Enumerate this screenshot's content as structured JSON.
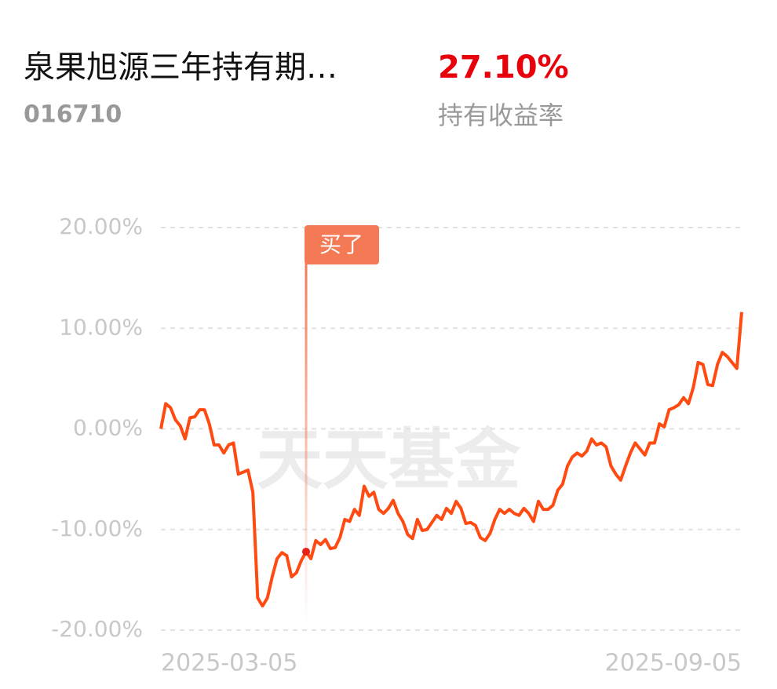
{
  "header": {
    "fund_name": "泉果旭源三年持有期…",
    "fund_code": "016710",
    "return_value": "27.10%",
    "return_label": "持有收益率"
  },
  "chart_data": {
    "type": "line",
    "watermark": "天天基金",
    "categories": [
      "2025-03-05",
      null,
      null,
      null,
      null,
      null,
      null,
      null,
      null,
      null,
      null,
      null,
      null,
      null,
      null,
      null,
      null,
      null,
      null,
      null,
      null,
      null,
      null,
      null,
      null,
      null,
      null,
      null,
      null,
      null,
      null,
      null,
      null,
      null,
      null,
      null,
      null,
      null,
      null,
      null,
      null,
      null,
      null,
      null,
      null,
      null,
      null,
      null,
      null,
      null,
      null,
      null,
      null,
      null,
      null,
      null,
      null,
      null,
      null,
      null,
      null,
      null,
      null,
      null,
      null,
      null,
      null,
      null,
      null,
      null,
      null,
      null,
      null,
      null,
      null,
      null,
      null,
      null,
      null,
      null,
      null,
      null,
      null,
      null,
      null,
      null,
      null,
      null,
      null,
      null,
      null,
      null,
      null,
      null,
      null,
      null,
      null,
      null,
      null,
      null,
      null,
      null,
      null,
      null,
      null,
      null,
      null,
      null,
      null,
      null,
      null,
      null,
      null,
      null,
      null,
      null,
      null,
      null,
      null,
      null,
      "2025-09-05"
    ],
    "series": [
      {
        "color": "#ff4a12",
        "values": [
          0,
          2.5,
          2.1,
          0.9,
          0.3,
          -1.0,
          1.1,
          1.2,
          1.9,
          1.9,
          0.5,
          -1.6,
          -1.6,
          -2.4,
          -1.6,
          -1.4,
          -4.5,
          -4.3,
          -4.1,
          -6.3,
          -16.8,
          -17.6,
          -16.8,
          -14.7,
          -12.9,
          -12.3,
          -12.6,
          -14.7,
          -14.3,
          -13.1,
          -12.2,
          -12.9,
          -11.1,
          -11.5,
          -11.0,
          -11.9,
          -11.8,
          -10.8,
          -9.0,
          -9.2,
          -8.0,
          -8.6,
          -5.7,
          -6.7,
          -6.3,
          -8.0,
          -8.4,
          -7.9,
          -7.1,
          -8.4,
          -9.2,
          -10.5,
          -10.9,
          -9.0,
          -10.1,
          -10.0,
          -9.3,
          -8.6,
          -9.0,
          -7.9,
          -8.4,
          -7.2,
          -7.9,
          -9.4,
          -9.3,
          -9.6,
          -10.8,
          -11.1,
          -10.4,
          -9.0,
          -8.0,
          -8.4,
          -8.0,
          -8.4,
          -8.6,
          -7.9,
          -8.4,
          -9.2,
          -7.2,
          -8.0,
          -8.0,
          -7.6,
          -6.1,
          -5.5,
          -3.7,
          -2.8,
          -2.4,
          -2.7,
          -2.2,
          -1.0,
          -1.6,
          -1.4,
          -1.8,
          -3.7,
          -4.5,
          -5.1,
          -3.7,
          -2.4,
          -1.4,
          -2.0,
          -2.6,
          -1.4,
          -1.4,
          0.5,
          0.2,
          1.9,
          2.1,
          2.4,
          3.1,
          2.5,
          4.1,
          6.6,
          6.4,
          4.4,
          4.3,
          6.4,
          7.6,
          7.2,
          6.6,
          6.0,
          11.6
        ]
      }
    ],
    "buy_marker": {
      "label": "买了",
      "index": 30,
      "color": "#f47a55"
    },
    "ylim": [
      -20,
      20
    ],
    "yticks": [
      {
        "value": 20,
        "label": "20.00%"
      },
      {
        "value": 10,
        "label": "10.00%"
      },
      {
        "value": 0,
        "label": "0.00%"
      },
      {
        "value": -10,
        "label": "-10.00%"
      },
      {
        "value": -20,
        "label": "-20.00%"
      }
    ],
    "grid": true
  }
}
